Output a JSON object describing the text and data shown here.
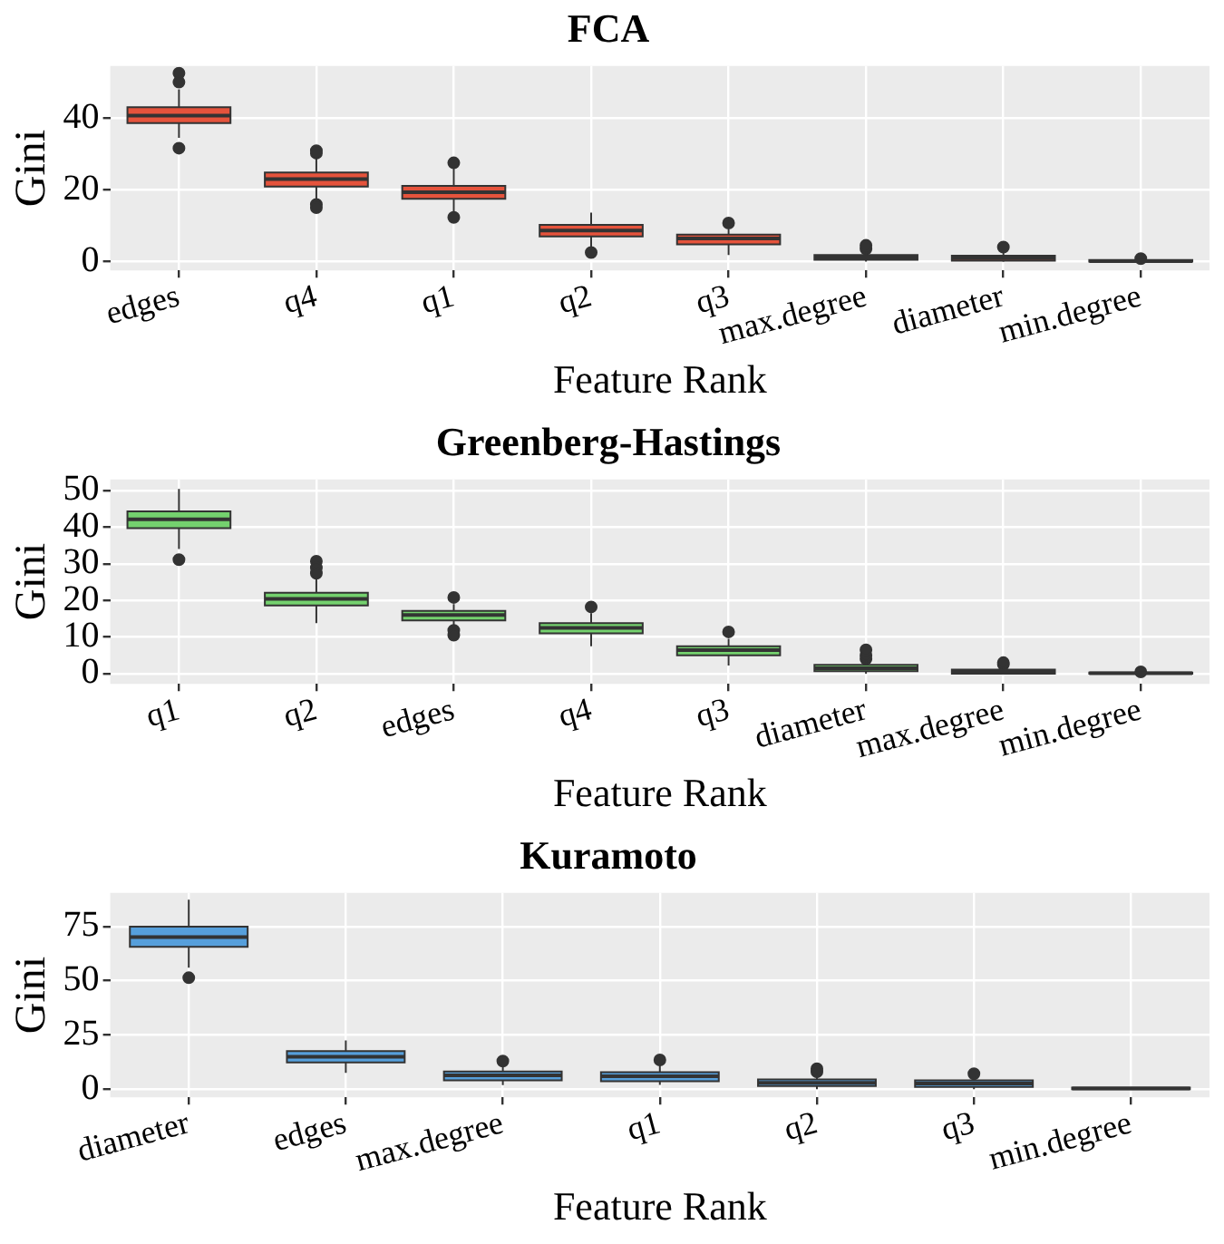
{
  "chart_data": [
    {
      "type": "box",
      "title": "FCA",
      "xlabel": "Feature Rank",
      "ylabel": "Gini",
      "categories": [
        "edges",
        "q4",
        "q1",
        "q2",
        "q3",
        "max.degree",
        "diameter",
        "min.degree"
      ],
      "ylim": [
        -2.5,
        54.5
      ],
      "yticks": [
        0,
        20,
        40
      ],
      "grid": true,
      "legend": false,
      "series": [
        {
          "color": "#e5533c",
          "boxes": [
            {
              "low": 34.5,
              "q1": 38.6,
              "median": 40.7,
              "q3": 43,
              "high": 48,
              "outliers": [
                52.5,
                50,
                31.6
              ]
            },
            {
              "low": 17,
              "q1": 20.9,
              "median": 23,
              "q3": 24.8,
              "high": 29,
              "outliers": [
                30.9,
                30.2,
                15.9,
                15
              ]
            },
            {
              "low": 14,
              "q1": 17.5,
              "median": 19.3,
              "q3": 21.1,
              "high": 26,
              "outliers": [
                27.5,
                12.3
              ]
            },
            {
              "low": 4,
              "q1": 7,
              "median": 8.6,
              "q3": 10.2,
              "high": 13.6,
              "outliers": [
                2.5
              ]
            },
            {
              "low": 1.8,
              "q1": 4.8,
              "median": 6.4,
              "q3": 7.5,
              "high": 9,
              "outliers": [
                10.7
              ]
            },
            {
              "low": 0,
              "q1": 0.5,
              "median": 1.1,
              "q3": 1.8,
              "high": 2.8,
              "outliers": [
                3.5,
                4.5
              ]
            },
            {
              "low": 0,
              "q1": 0.2,
              "median": 0.9,
              "q3": 1.6,
              "high": 2.5,
              "outliers": [
                4
              ]
            },
            {
              "low": 0,
              "q1": 0,
              "median": 0.1,
              "q3": 0.4,
              "high": 0.6,
              "outliers": [
                0.8
              ]
            }
          ]
        }
      ]
    },
    {
      "type": "box",
      "title": "Greenberg-Hastings",
      "xlabel": "Feature Rank",
      "ylabel": "Gini",
      "categories": [
        "q1",
        "q2",
        "edges",
        "q4",
        "q3",
        "diameter",
        "max.degree",
        "min.degree"
      ],
      "ylim": [
        -2.8,
        53
      ],
      "yticks": [
        0,
        10,
        20,
        30,
        40,
        50
      ],
      "grid": true,
      "legend": false,
      "series": [
        {
          "color": "#74d16e",
          "boxes": [
            {
              "low": 34,
              "q1": 39.7,
              "median": 42.1,
              "q3": 44.3,
              "high": 50.4,
              "outliers": [
                31.1
              ]
            },
            {
              "low": 13.8,
              "q1": 18.6,
              "median": 20.4,
              "q3": 22.1,
              "high": 26,
              "outliers": [
                30.7,
                28.9,
                27.4
              ]
            },
            {
              "low": 12.5,
              "q1": 14.5,
              "median": 16,
              "q3": 17.1,
              "high": 19,
              "outliers": [
                20.8,
                11.8,
                10.5
              ]
            },
            {
              "low": 7.5,
              "q1": 11,
              "median": 12.5,
              "q3": 13.8,
              "high": 16.5,
              "outliers": [
                18.2
              ]
            },
            {
              "low": 2.2,
              "q1": 5,
              "median": 6.4,
              "q3": 7.5,
              "high": 9.5,
              "outliers": [
                11.4
              ]
            },
            {
              "low": 0,
              "q1": 0.7,
              "median": 1.5,
              "q3": 2.4,
              "high": 3.5,
              "outliers": [
                4,
                5,
                6.5
              ]
            },
            {
              "low": 0,
              "q1": 0,
              "median": 0.5,
              "q3": 1.1,
              "high": 1.8,
              "outliers": [
                2.5,
                3
              ]
            },
            {
              "low": 0,
              "q1": 0,
              "median": 0.1,
              "q3": 0.3,
              "high": 0.4,
              "outliers": [
                0.5
              ]
            }
          ]
        }
      ]
    },
    {
      "type": "box",
      "title": "Kuramoto",
      "xlabel": "Feature Rank",
      "ylabel": "Gini",
      "categories": [
        "diameter",
        "edges",
        "max.degree",
        "q1",
        "q2",
        "q3",
        "min.degree"
      ],
      "ylim": [
        -3.75,
        90.5
      ],
      "yticks": [
        0,
        25,
        50,
        75
      ],
      "grid": true,
      "legend": false,
      "series": [
        {
          "color": "#569fdb",
          "boxes": [
            {
              "low": 56,
              "q1": 65.6,
              "median": 70.1,
              "q3": 75,
              "high": 87.4,
              "outliers": [
                51.4
              ]
            },
            {
              "low": 7.5,
              "q1": 12.4,
              "median": 15,
              "q3": 17.6,
              "high": 22.5
            },
            {
              "low": 1.9,
              "q1": 4.1,
              "median": 6.4,
              "q3": 8.2,
              "high": 11,
              "outliers": [
                13
              ]
            },
            {
              "low": 2,
              "q1": 3.7,
              "median": 6,
              "q3": 7.9,
              "high": 11,
              "outliers": [
                13.5
              ]
            },
            {
              "low": 0,
              "q1": 1.5,
              "median": 3,
              "q3": 4.5,
              "high": 7,
              "outliers": [
                9.4,
                8
              ]
            },
            {
              "low": 0,
              "q1": 1.1,
              "median": 2.6,
              "q3": 4.1,
              "high": 6,
              "outliers": [
                7.1
              ]
            },
            {
              "low": 0,
              "q1": 0,
              "median": 0.3,
              "q3": 0.8,
              "high": 1
            }
          ]
        }
      ]
    }
  ]
}
